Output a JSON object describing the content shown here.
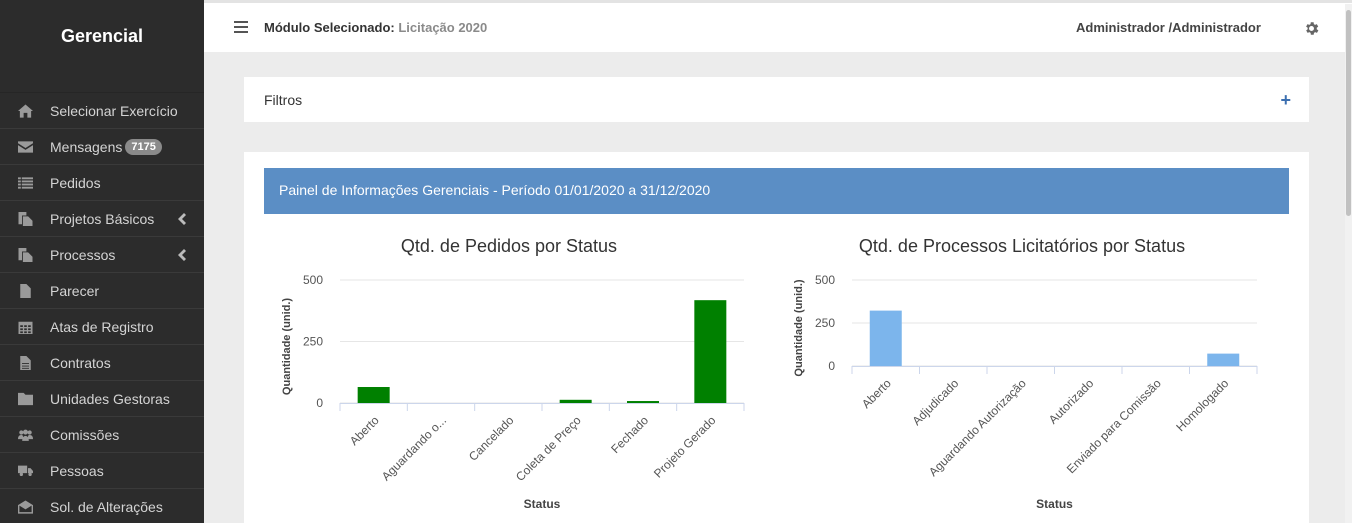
{
  "sidebar": {
    "brand": "Gerencial",
    "items": [
      {
        "label": "Selecionar Exercício",
        "icon": "home-icon"
      },
      {
        "label": "Mensagens",
        "icon": "envelope-icon",
        "badge": "7175"
      },
      {
        "label": "Pedidos",
        "icon": "list-icon"
      },
      {
        "label": "Projetos Básicos",
        "icon": "copy-icon",
        "submenu": true
      },
      {
        "label": "Processos",
        "icon": "copy-icon",
        "submenu": true
      },
      {
        "label": "Parecer",
        "icon": "file-icon"
      },
      {
        "label": "Atas de Registro",
        "icon": "calendar-icon"
      },
      {
        "label": "Contratos",
        "icon": "file-text-icon"
      },
      {
        "label": "Unidades Gestoras",
        "icon": "folder-icon"
      },
      {
        "label": "Comissões",
        "icon": "users-icon"
      },
      {
        "label": "Pessoas",
        "icon": "truck-icon"
      },
      {
        "label": "Sol. de Alterações",
        "icon": "envelope-open-icon"
      }
    ]
  },
  "topbar": {
    "module_label": "Módulo Selecionado:",
    "module_value": "Licitação 2020",
    "user": "Administrador /Administrador"
  },
  "filters": {
    "label": "Filtros",
    "toggle": "+"
  },
  "panel": {
    "title": "Painel de Informações Gerenciais - Período 01/01/2020 a 31/12/2020"
  },
  "chart_data": [
    {
      "type": "bar",
      "title": "Qtd. de Pedidos por Status",
      "xlabel": "Status",
      "ylabel": "Quantidade (unid.)",
      "ylim": [
        0,
        500
      ],
      "yticks": [
        "0",
        "250",
        "500"
      ],
      "categories": [
        "Aberto",
        "Aguardando o...",
        "Cancelado",
        "Coleta de Preço",
        "Fechado",
        "Projeto Gerado"
      ],
      "values": [
        65,
        0,
        0,
        13,
        8,
        418
      ],
      "color": "#008000"
    },
    {
      "type": "bar",
      "title": "Qtd. de Processos Licitatórios por Status",
      "xlabel": "Status",
      "ylabel": "Quantidade (unid.)",
      "ylim": [
        0,
        500
      ],
      "yticks": [
        "0",
        "250",
        "500"
      ],
      "categories": [
        "Aberto",
        "Adjudicado",
        "Aguardando Autorização",
        "Autorizado",
        "Enviado para Comissão",
        "Homologado"
      ],
      "values": [
        322,
        0,
        0,
        0,
        0,
        72
      ],
      "color": "#7cb5ec"
    }
  ]
}
